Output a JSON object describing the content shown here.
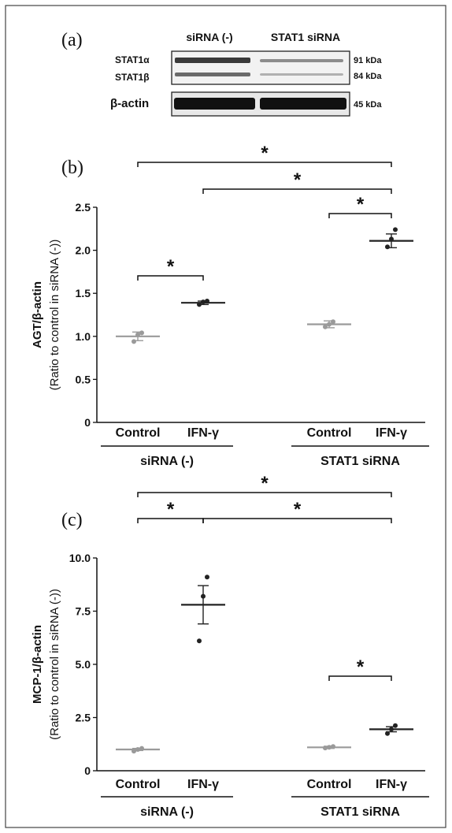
{
  "panel_a": {
    "label": "(a)",
    "col_headers": [
      "siRNA (-)",
      "STAT1 siRNA"
    ],
    "row_labels": [
      "STAT1α",
      "STAT1β",
      "β-actin"
    ],
    "sizes": [
      "91 kDa",
      "84 kDa",
      "45 kDa"
    ]
  },
  "chart_data": [
    {
      "type": "scatter",
      "panel_label": "(b)",
      "ylabel_line1": "AGT/β-actin",
      "ylabel_line2": "(Ratio to control in siRNA (-))",
      "ylim": [
        0,
        2.5
      ],
      "yticks": [
        "0",
        "0.5",
        "1.0",
        "1.5",
        "2.0",
        "2.5"
      ],
      "ytick_values": [
        0,
        0.5,
        1.0,
        1.5,
        2.0,
        2.5
      ],
      "categories": [
        "Control",
        "IFN-γ",
        "Control",
        "IFN-γ"
      ],
      "groups": [
        "siRNA (-)",
        "STAT1 siRNA"
      ],
      "means": [
        1.0,
        1.39,
        1.14,
        2.11
      ],
      "sem": [
        0.05,
        0.02,
        0.04,
        0.08
      ],
      "points": [
        [
          0.94,
          1.02,
          1.04
        ],
        [
          1.37,
          1.4,
          1.41
        ],
        [
          1.11,
          1.14,
          1.17
        ],
        [
          2.04,
          2.13,
          2.24
        ]
      ],
      "marker_colors": [
        "#9a9a9a",
        "#222222",
        "#9a9a9a",
        "#222222"
      ],
      "significance": [
        {
          "from": 0,
          "to": 1,
          "label": "*"
        },
        {
          "from": 2,
          "to": 3,
          "label": "*"
        },
        {
          "from": 1,
          "to": 3,
          "label": "*"
        },
        {
          "from": 0,
          "to": 3,
          "label": "*"
        }
      ]
    },
    {
      "type": "scatter",
      "panel_label": "(c)",
      "ylabel_line1": "MCP-1/β-actin",
      "ylabel_line2": "(Ratio to control in siRNA (-))",
      "ylim": [
        0,
        10
      ],
      "yticks": [
        "0",
        "2.5",
        "5.0",
        "7.5",
        "10.0"
      ],
      "ytick_values": [
        0,
        2.5,
        5.0,
        7.5,
        10.0
      ],
      "categories": [
        "Control",
        "IFN-γ",
        "Control",
        "IFN-γ"
      ],
      "groups": [
        "siRNA (-)",
        "STAT1 siRNA"
      ],
      "means": [
        1.0,
        7.8,
        1.1,
        1.95
      ],
      "sem": [
        0.05,
        0.9,
        0.05,
        0.12
      ],
      "points": [
        [
          0.92,
          1.0,
          1.05
        ],
        [
          6.1,
          8.2,
          9.1
        ],
        [
          1.07,
          1.1,
          1.14
        ],
        [
          1.75,
          1.95,
          2.12
        ]
      ],
      "marker_colors": [
        "#9a9a9a",
        "#222222",
        "#9a9a9a",
        "#222222"
      ],
      "significance": [
        {
          "from": 0,
          "to": 1,
          "label": "*"
        },
        {
          "from": 1,
          "to": 3,
          "label": "*"
        },
        {
          "from": 2,
          "to": 3,
          "label": "*"
        },
        {
          "from": 0,
          "to": 3,
          "label": "*"
        }
      ]
    }
  ]
}
